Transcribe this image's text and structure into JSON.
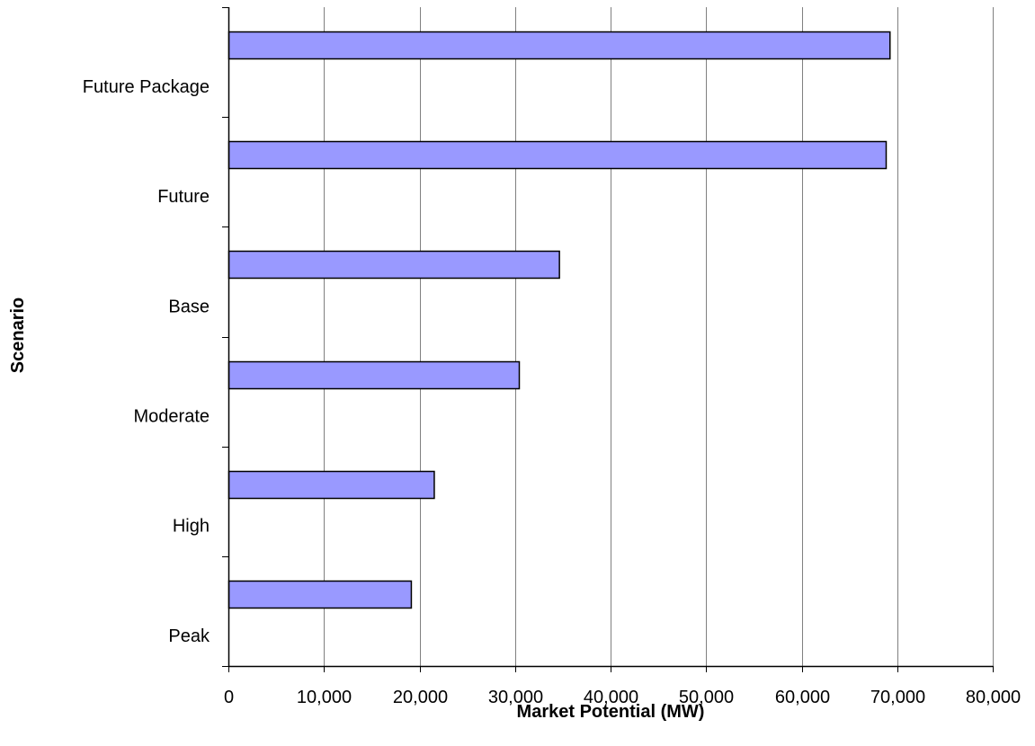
{
  "chart_data": {
    "type": "bar",
    "orientation": "horizontal",
    "title": "",
    "xlabel": "Market Potential (MW)",
    "ylabel": "Scenario",
    "categories": [
      "Future Package",
      "Future",
      "Base",
      "Moderate",
      "High",
      "Peak"
    ],
    "series": [
      {
        "values": [
          69200,
          68800,
          34600,
          30400,
          21500,
          19100
        ],
        "color": "#9999ff"
      }
    ],
    "xlim": [
      0,
      80000
    ],
    "xticks": [
      0,
      10000,
      20000,
      30000,
      40000,
      50000,
      60000,
      70000,
      80000
    ],
    "xtick_labels": [
      "0",
      "10,000",
      "20,000",
      "30,000",
      "40,000",
      "50,000",
      "60,000",
      "70,000",
      "80,000"
    ],
    "grid": "vertical",
    "legend": "none"
  }
}
